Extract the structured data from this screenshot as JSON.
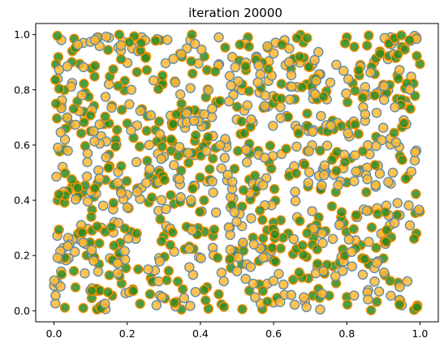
{
  "chart_data": {
    "type": "scatter",
    "title": "iteration 20000",
    "xlabel": "",
    "ylabel": "",
    "xlim": [
      -0.05,
      1.05
    ],
    "ylim": [
      -0.04,
      1.04
    ],
    "xticks": [
      0.0,
      0.2,
      0.4,
      0.6,
      0.8,
      1.0
    ],
    "yticks": [
      0.0,
      0.2,
      0.4,
      0.6,
      0.8,
      1.0
    ],
    "xtick_labels": [
      "0.0",
      "0.2",
      "0.4",
      "0.6",
      "0.8",
      "1.0"
    ],
    "ytick_labels": [
      "0.0",
      "0.2",
      "0.4",
      "0.6",
      "0.8",
      "1.0"
    ],
    "grid": false,
    "legend": "none",
    "point_count": 1000,
    "distribution": "approximately uniform on [0,1] x [0,1]",
    "series": [
      {
        "marker_face": "#ffb833",
        "marker_edge": "#5b88a8",
        "count": 500
      },
      {
        "marker_face": "#2e8b1f",
        "marker_edge": "#ff8c00",
        "count": 500
      }
    ],
    "sample_points": [
      [
        0.02,
        0.98
      ],
      [
        0.05,
        0.94
      ],
      [
        0.08,
        0.97
      ],
      [
        0.12,
        0.99
      ],
      [
        0.24,
        0.99
      ],
      [
        0.29,
        0.98
      ],
      [
        0.45,
        0.99
      ],
      [
        0.53,
        0.99
      ],
      [
        0.63,
        0.98
      ],
      [
        0.8,
        0.99
      ],
      [
        0.92,
        0.99
      ],
      [
        0.99,
        0.99
      ],
      [
        0.01,
        0.84
      ],
      [
        0.02,
        0.74
      ],
      [
        0.15,
        0.82
      ],
      [
        0.33,
        0.83
      ],
      [
        0.48,
        0.85
      ],
      [
        0.69,
        0.82
      ],
      [
        0.85,
        0.81
      ],
      [
        0.96,
        0.76
      ],
      [
        0.03,
        0.62
      ],
      [
        0.1,
        0.65
      ],
      [
        0.26,
        0.6
      ],
      [
        0.51,
        0.64
      ],
      [
        0.66,
        0.67
      ],
      [
        0.88,
        0.63
      ],
      [
        0.99,
        0.58
      ],
      [
        0.05,
        0.45
      ],
      [
        0.2,
        0.42
      ],
      [
        0.41,
        0.4
      ],
      [
        0.58,
        0.48
      ],
      [
        0.77,
        0.43
      ],
      [
        0.92,
        0.46
      ],
      [
        0.01,
        0.4
      ],
      [
        0.13,
        0.3
      ],
      [
        0.3,
        0.27
      ],
      [
        0.48,
        0.3
      ],
      [
        0.64,
        0.28
      ],
      [
        0.86,
        0.25
      ],
      [
        0.99,
        0.28
      ],
      [
        0.04,
        0.19
      ],
      [
        0.23,
        0.15
      ],
      [
        0.38,
        0.13
      ],
      [
        0.56,
        0.18
      ],
      [
        0.72,
        0.16
      ],
      [
        0.9,
        0.19
      ],
      [
        0.0,
        0.09
      ],
      [
        0.08,
        0.01
      ],
      [
        0.28,
        0.02
      ],
      [
        0.45,
        0.06
      ],
      [
        0.6,
        0.03
      ],
      [
        0.8,
        0.05
      ],
      [
        0.95,
        0.02
      ]
    ]
  }
}
